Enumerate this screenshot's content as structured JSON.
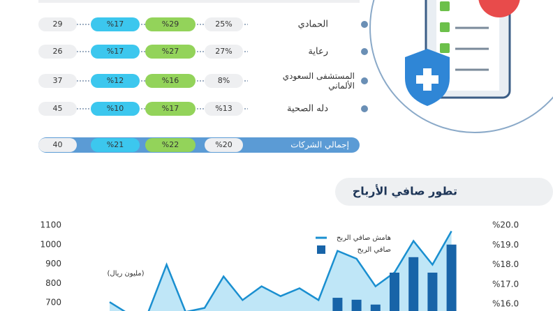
{
  "table": {
    "rows": [
      {
        "name": "الحمادي",
        "value": "29",
        "c1": "%17",
        "c2": "%29",
        "c3": "25%"
      },
      {
        "name": "رعاية",
        "value": "26",
        "c1": "%17",
        "c2": "%27",
        "c3": "27%"
      },
      {
        "name": "المستشفى السعودي الألماني",
        "value": "37",
        "c1": "%12",
        "c2": "%16",
        "c3": "8%"
      },
      {
        "name": "دله الصحية",
        "value": "45",
        "c1": "%10",
        "c2": "%17",
        "c3": "%13"
      }
    ],
    "total": {
      "name": "إجمالي الشركات",
      "value": "40",
      "c1": "%21",
      "c2": "%22",
      "c3": "%20"
    }
  },
  "chart_data": {
    "type": "combo",
    "title": "تطور صافي الأرباح",
    "annotation": "(مليون ريال)",
    "categories": [
      null,
      null,
      null,
      null,
      null,
      null,
      null,
      null,
      null,
      null,
      null,
      null,
      null,
      null,
      null,
      null,
      null,
      null,
      null
    ],
    "ylim": [
      700,
      1100
    ],
    "yticks": [
      700,
      800,
      900,
      1000,
      1100
    ],
    "y2lim": [
      16,
      20
    ],
    "y2ticks": [
      {
        "value": 16,
        "label": "%16.0"
      },
      {
        "value": 17,
        "label": "%17.0"
      },
      {
        "value": 18,
        "label": "%18.0"
      },
      {
        "value": 19,
        "label": "%19.0"
      },
      {
        "value": 20,
        "label": "%20.0"
      }
    ],
    "series": [
      {
        "name": "هامش صافي الربح",
        "type": "area",
        "axis": "y2",
        "color": "#1a8fd0",
        "values": [
          16.1,
          15.5,
          15.5,
          18.0,
          15.6,
          15.8,
          17.4,
          16.2,
          16.9,
          16.4,
          16.8,
          16.2,
          18.7,
          18.3,
          16.9,
          17.6,
          19.2,
          18.0,
          19.7
        ]
      },
      {
        "name": "صافي الربح",
        "type": "bar",
        "color": "#1864a8",
        "values": [
          null,
          null,
          null,
          null,
          null,
          null,
          null,
          null,
          null,
          null,
          null,
          null,
          725,
          715,
          690,
          855,
          935,
          855,
          1000
        ]
      }
    ]
  }
}
